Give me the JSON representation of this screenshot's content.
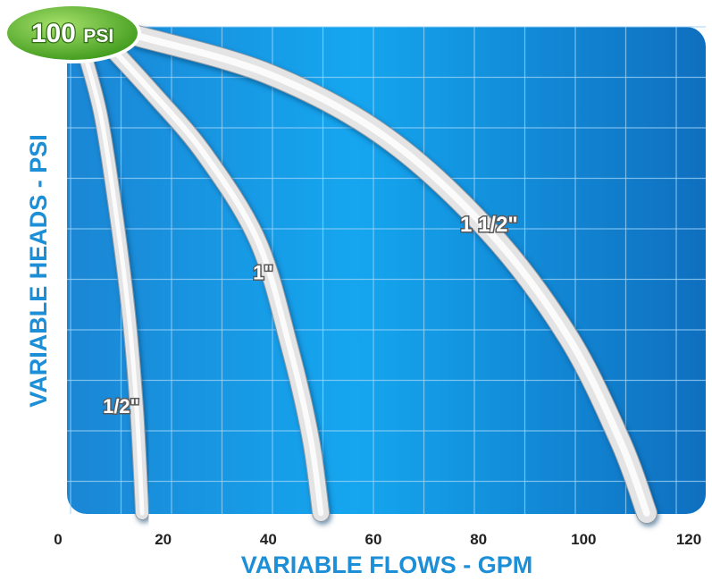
{
  "chart_data": {
    "type": "line",
    "title": "",
    "xlabel": "VARIABLE FLOWS - GPM",
    "ylabel": "VARIABLE HEADS - PSI",
    "xlim": [
      0,
      120
    ],
    "ylim": [
      0,
      100
    ],
    "x_ticks": [
      "0",
      "20",
      "40",
      "60",
      "80",
      "100",
      "120"
    ],
    "grid": true,
    "badge": {
      "value": "100",
      "unit": "PSI"
    },
    "series": [
      {
        "name": "1/2\"",
        "label_x": 12,
        "label_y": 21,
        "points": [
          [
            4,
            100
          ],
          [
            8,
            84
          ],
          [
            11,
            63
          ],
          [
            13.5,
            41
          ],
          [
            15,
            21
          ],
          [
            16,
            0
          ]
        ]
      },
      {
        "name": "1\"",
        "label_x": 39,
        "label_y": 49,
        "points": [
          [
            8,
            100
          ],
          [
            18,
            88
          ],
          [
            28,
            75
          ],
          [
            38,
            57
          ],
          [
            44,
            35
          ],
          [
            48,
            16
          ],
          [
            50,
            0
          ]
        ]
      },
      {
        "name": "1 1/2\"",
        "label_x": 82,
        "label_y": 59,
        "points": [
          [
            15,
            100
          ],
          [
            40,
            92
          ],
          [
            62,
            79
          ],
          [
            82,
            59
          ],
          [
            97,
            37
          ],
          [
            107,
            15
          ],
          [
            112,
            0
          ]
        ]
      }
    ],
    "colors": {
      "plot_bg": "#1a93e6",
      "grid": "#9dd3f7",
      "axis_title": "#1d8fd6",
      "badge": "#5cb82b",
      "curve": "#e4e4e4"
    }
  }
}
